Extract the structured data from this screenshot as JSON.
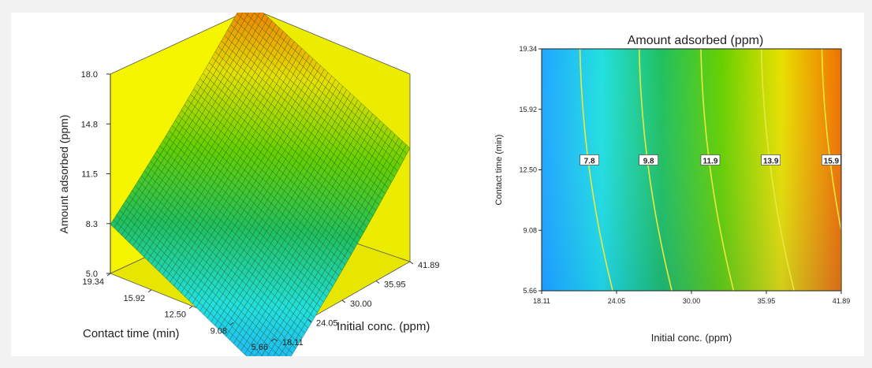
{
  "chart_data": [
    {
      "type": "surface3d",
      "title": "",
      "zlabel": "Amount adsorbed (ppm)",
      "xlabel": "Initial conc. (ppm)",
      "ylabel": "Contact time (min)",
      "z_ticks": [
        "18.0",
        "14.8",
        "11.5",
        "8.3",
        "5.0"
      ],
      "x_ticks": [
        "18.11",
        "24.05",
        "30.00",
        "35.95",
        "41.89"
      ],
      "y_ticks": [
        "19.34",
        "15.92",
        "12.50",
        "9.08",
        "5.66"
      ],
      "z_range": [
        5.0,
        18.0
      ],
      "x_range": [
        18.11,
        41.89
      ],
      "y_range": [
        5.66,
        19.34
      ],
      "corner_values": [
        {
          "x": 18.11,
          "y": 5.66,
          "z": 2.1
        },
        {
          "x": 41.89,
          "y": 5.66,
          "z": 12.4
        },
        {
          "x": 18.11,
          "y": 19.34,
          "z": 8.2
        },
        {
          "x": 41.89,
          "y": 19.34,
          "z": 18.0
        }
      ],
      "colors": {
        "wall": "#f5f500",
        "low": "#2fa0ff",
        "mid": "#22aa22",
        "high": "#f08a00"
      }
    },
    {
      "type": "contour",
      "title": "Amount adsorbed (ppm)",
      "xlabel": "Initial conc. (ppm)",
      "ylabel": "Contact time (min)",
      "x_ticks": [
        "18.11",
        "24.05",
        "30.00",
        "35.95",
        "41.89"
      ],
      "y_ticks": [
        "19.34",
        "15.92",
        "12.50",
        "9.08",
        "5.66"
      ],
      "x_range": [
        18.11,
        41.89
      ],
      "y_range": [
        5.66,
        19.34
      ],
      "contour_levels": [
        "7.8",
        "9.8",
        "11.9",
        "13.9",
        "15.9"
      ],
      "contour_x_at_mid": [
        21.9,
        26.6,
        31.5,
        36.3,
        41.1
      ]
    }
  ]
}
